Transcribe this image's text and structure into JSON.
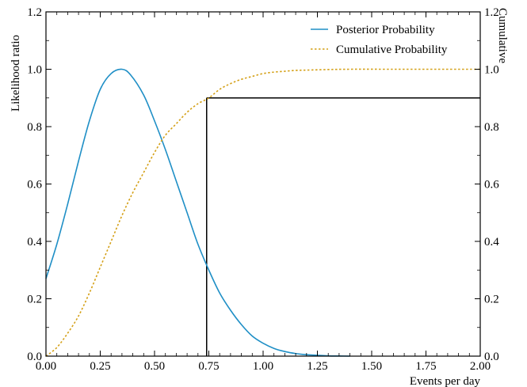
{
  "chart_data": {
    "type": "line",
    "xlabel": "Events per day",
    "ylabel_left": "Likelihood ratio",
    "ylabel_right": "Cumulative",
    "xlim": [
      0,
      2.0
    ],
    "ylim": [
      0,
      1.2
    ],
    "x_ticks": [
      "0.00",
      "0.25",
      "0.50",
      "0.75",
      "1.00",
      "1.25",
      "1.50",
      "1.75",
      "2.00"
    ],
    "y_ticks": [
      "0.0",
      "0.2",
      "0.4",
      "0.6",
      "0.8",
      "1.0",
      "1.2"
    ],
    "legend_position": "top-right",
    "grid": false,
    "series": [
      {
        "name": "Posterior Probability",
        "color": "#1f8fc6",
        "style": "solid",
        "x": [
          0,
          0.05,
          0.1,
          0.15,
          0.2,
          0.25,
          0.3,
          0.35,
          0.39,
          0.45,
          0.5,
          0.55,
          0.6,
          0.65,
          0.7,
          0.75,
          0.8,
          0.85,
          0.9,
          0.95,
          1.0,
          1.05,
          1.1,
          1.15,
          1.2,
          1.25,
          1.3,
          1.35,
          1.4
        ],
        "values": [
          0.27,
          0.39,
          0.53,
          0.68,
          0.82,
          0.93,
          0.985,
          1.0,
          0.98,
          0.91,
          0.82,
          0.72,
          0.61,
          0.5,
          0.39,
          0.3,
          0.22,
          0.16,
          0.11,
          0.07,
          0.045,
          0.027,
          0.016,
          0.009,
          0.005,
          0.003,
          0.001,
          0.0005,
          0.0
        ]
      },
      {
        "name": "Cumulative Probability",
        "color": "#d4a017",
        "style": "dotted",
        "x": [
          0,
          0.05,
          0.1,
          0.15,
          0.2,
          0.25,
          0.3,
          0.35,
          0.4,
          0.45,
          0.5,
          0.55,
          0.6,
          0.65,
          0.7,
          0.75,
          0.8,
          0.85,
          0.9,
          0.95,
          1.0,
          1.05,
          1.1,
          1.15,
          1.2,
          1.3,
          1.4,
          1.6,
          1.8,
          2.0
        ],
        "values": [
          0.0,
          0.03,
          0.08,
          0.14,
          0.22,
          0.31,
          0.4,
          0.49,
          0.57,
          0.64,
          0.71,
          0.77,
          0.81,
          0.85,
          0.88,
          0.9,
          0.93,
          0.95,
          0.965,
          0.975,
          0.985,
          0.99,
          0.993,
          0.996,
          0.997,
          0.999,
          1.0,
          1.0,
          1.0,
          1.0
        ]
      }
    ],
    "reference_lines": {
      "vertical_x": 0.74,
      "horizontal_y": 0.9,
      "color": "#000000"
    }
  }
}
